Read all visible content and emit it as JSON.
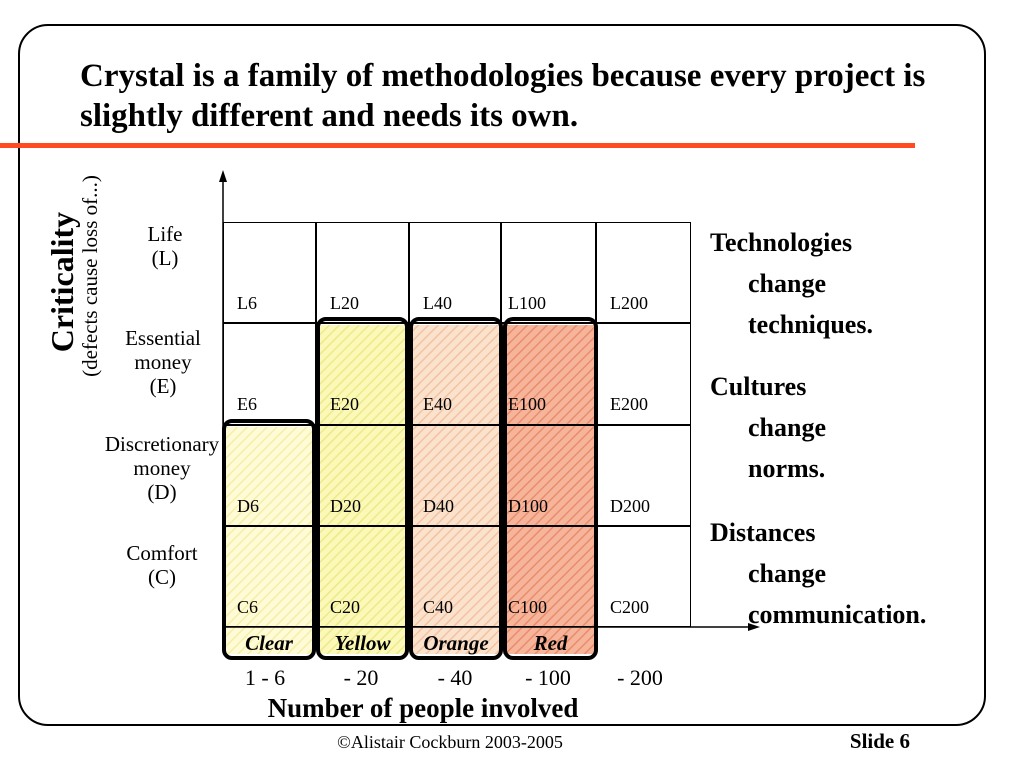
{
  "slide": {
    "title": "Crystal is a family of methodologies because every project is slightly different and needs its own.",
    "accent_color": "#ff4b1f"
  },
  "y_axis": {
    "title": "Criticality",
    "subtitle": "(defects cause loss of...)"
  },
  "rows": [
    {
      "key": "L",
      "lines": [
        "Life",
        "(L)"
      ]
    },
    {
      "key": "E",
      "lines": [
        "Essential",
        "money",
        "(E)"
      ]
    },
    {
      "key": "D",
      "lines": [
        "Discretionary",
        "money",
        "(D)"
      ]
    },
    {
      "key": "C",
      "lines": [
        "Comfort",
        "(C)"
      ]
    }
  ],
  "grid": {
    "cells": [
      [
        "L6",
        "L20",
        "L40",
        "L100",
        "L200"
      ],
      [
        "E6",
        "E20",
        "E40",
        "E100",
        "E200"
      ],
      [
        "D6",
        "D20",
        "D40",
        "D100",
        "D200"
      ],
      [
        "C6",
        "C20",
        "C40",
        "C100",
        "C200"
      ]
    ]
  },
  "bands": [
    {
      "name": "Clear",
      "fill_color": "#fffbd6",
      "hatch_color": "#f4efa8",
      "top_row": 2
    },
    {
      "name": "Yellow",
      "fill_color": "#fbf8b8",
      "hatch_color": "#ecea8a",
      "top_row": 1
    },
    {
      "name": "Orange",
      "fill_color": "#fbe2cc",
      "hatch_color": "#f2c3a2",
      "top_row": 1
    },
    {
      "name": "Red",
      "fill_color": "#f6b59a",
      "hatch_color": "#e98d6c",
      "top_row": 1
    }
  ],
  "x_axis": {
    "title": "Number of people involved",
    "ticks": [
      "1 - 6",
      "- 20",
      "- 40",
      "- 100",
      "- 200"
    ]
  },
  "side_notes": [
    {
      "head": "Technologies",
      "sub": [
        "change",
        "techniques."
      ]
    },
    {
      "head": "Cultures",
      "sub": [
        "change",
        "norms."
      ]
    },
    {
      "head": "Distances",
      "sub": [
        "change",
        "communication."
      ]
    }
  ],
  "footer": {
    "copyright": "©Alistair Cockburn 2003-2005",
    "slide_number": "Slide 6"
  }
}
